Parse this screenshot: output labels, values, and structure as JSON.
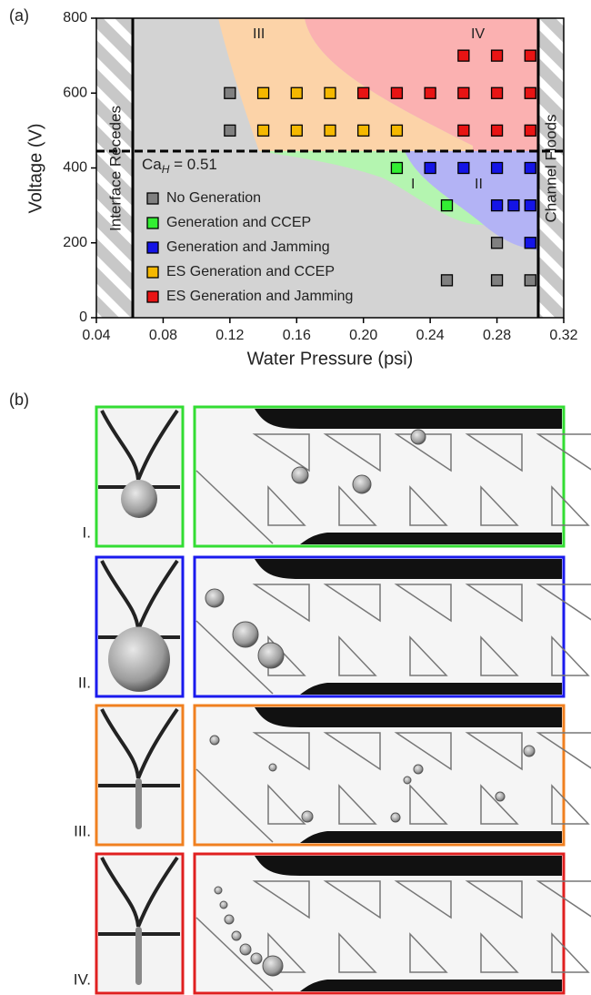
{
  "figure_labels": {
    "a": "(a)",
    "b": "(b)"
  },
  "chart_data": {
    "type": "scatter",
    "xlabel": "Water Pressure (psi)",
    "ylabel": "Voltage (V)",
    "xlim": [
      0.04,
      0.32
    ],
    "xticks": [
      0.04,
      0.08,
      0.12,
      0.16,
      {
        "value": 0.2,
        "label": "0.20"
      },
      0.24,
      0.28,
      0.32
    ],
    "ylim": [
      0,
      800
    ],
    "yticks": [
      0,
      200,
      400,
      600,
      800
    ],
    "series": [
      {
        "name": "No Generation",
        "color": "#808080",
        "x": [
          0.12,
          0.12,
          0.28,
          0.25,
          0.28,
          0.3
        ],
        "y": [
          600,
          500,
          200,
          100,
          100,
          100
        ]
      },
      {
        "name": "Generation and CCEP",
        "color": "#33ee33",
        "x": [
          0.22,
          0.25
        ],
        "y": [
          400,
          300
        ]
      },
      {
        "name": "Generation and Jamming",
        "color": "#1414e6",
        "x": [
          0.24,
          0.26,
          0.28,
          0.3,
          0.28,
          0.29,
          0.3,
          0.3
        ],
        "y": [
          400,
          400,
          400,
          400,
          300,
          300,
          300,
          200
        ]
      },
      {
        "name": "ES Generation and CCEP",
        "color": "#f5b800",
        "x": [
          0.14,
          0.16,
          0.18,
          0.14,
          0.16,
          0.18,
          0.2,
          0.22
        ],
        "y": [
          600,
          600,
          600,
          500,
          500,
          500,
          500,
          500
        ]
      },
      {
        "name": "ES Generation and Jamming",
        "color": "#e81414",
        "x": [
          0.26,
          0.28,
          0.3,
          0.2,
          0.22,
          0.24,
          0.26,
          0.28,
          0.3,
          0.26,
          0.28,
          0.3
        ],
        "y": [
          700,
          700,
          700,
          600,
          600,
          600,
          600,
          600,
          600,
          500,
          500,
          500
        ]
      }
    ],
    "boundary_labels": [
      "Interface Recedes",
      "Channel Floods"
    ],
    "threshold": {
      "base": "Ca",
      "subscript": "H",
      "rest": " = 0.51"
    },
    "region_labels": [
      "I",
      "II",
      "III",
      "IV"
    ]
  },
  "panels": [
    {
      "label": "I.",
      "color": "#33dd33"
    },
    {
      "label": "II.",
      "color": "#1a1aee"
    },
    {
      "label": "III.",
      "color": "#f08020"
    },
    {
      "label": "IV.",
      "color": "#e02020"
    }
  ]
}
